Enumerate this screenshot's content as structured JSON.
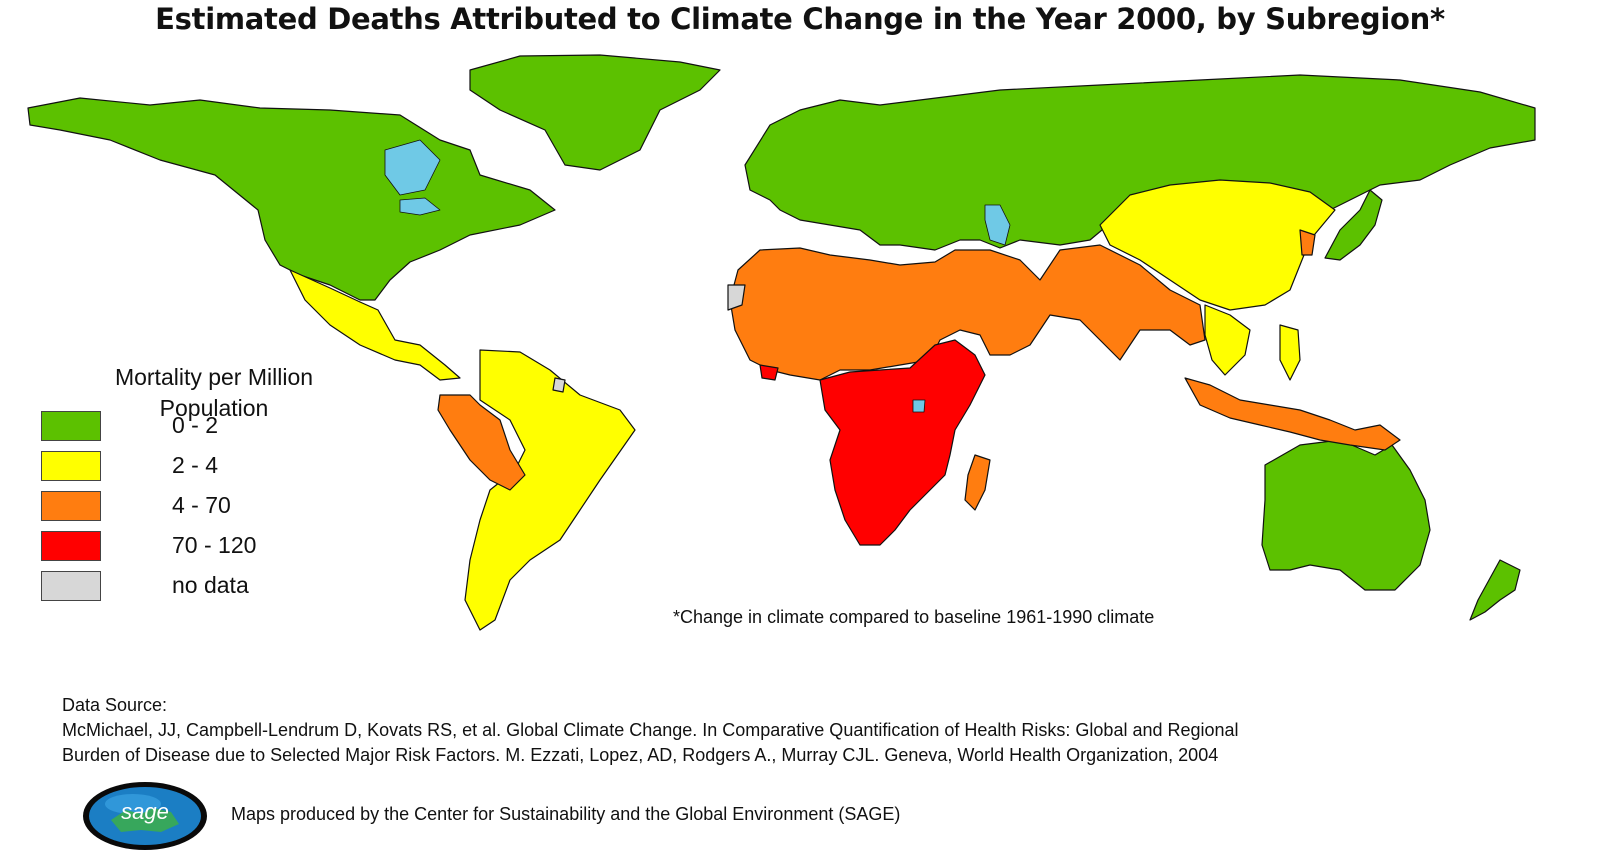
{
  "title": "Estimated Deaths Attributed to Climate Change in the Year 2000, by Subregion*",
  "legend": {
    "title_line1": "Mortality per Million",
    "title_line2": "Population",
    "items": [
      {
        "label": "0 - 2",
        "color": "#5cc100"
      },
      {
        "label": "2 - 4",
        "color": "#ffff00"
      },
      {
        "label": "4 - 70",
        "color": "#ff7d10"
      },
      {
        "label": "70 - 120",
        "color": "#ff0000"
      },
      {
        "label": "no data",
        "color": "#d7d7d7"
      }
    ]
  },
  "water_color": "#6fc9e6",
  "footnote": "*Change in climate compared to baseline 1961-1990 climate",
  "source": {
    "heading": "Data Source:",
    "line1": "McMichael, JJ, Campbell-Lendrum D, Kovats RS, et al. Global Climate Change. In Comparative Quantification of Health Risks: Global and Regional",
    "line2": "Burden of Disease due to Selected Major Risk Factors. M. Ezzati, Lopez, AD, Rodgers A., Murray CJL. Geneva, World Health Organization, 2004"
  },
  "logo": {
    "text": "sage",
    "color": "#1b7ec4"
  },
  "credit": "Maps produced by the Center for Sustainability and the Global Environment (SAGE)"
}
